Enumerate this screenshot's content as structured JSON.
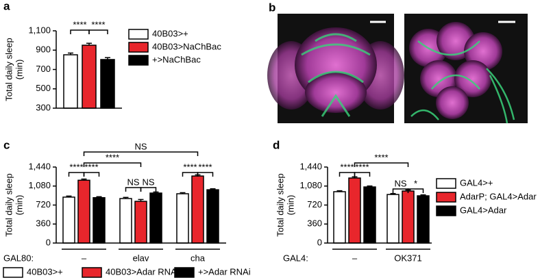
{
  "chart_data": [
    {
      "type": "bar",
      "panel": "a",
      "ylabel": [
        "Total daily sleep",
        "(min)"
      ],
      "categories": [
        null
      ],
      "series": [
        {
          "name": "40B03>+",
          "color": "#ffffff",
          "values": [
            852
          ],
          "errors": [
            18
          ]
        },
        {
          "name": "40B03>NaChBac",
          "color": "#e8262c",
          "values": [
            951
          ],
          "errors": [
            20
          ]
        },
        {
          "name": "+>NaChBac",
          "color": "#000000",
          "values": [
            803
          ],
          "errors": [
            20
          ]
        }
      ],
      "ylim": [
        300,
        1100
      ],
      "yticks": [
        300,
        500,
        700,
        900,
        {
          "value": 1100,
          "label": "1,100"
        }
      ],
      "annotations": [
        "****",
        "****"
      ]
    },
    {
      "type": "bar",
      "panel": "c",
      "ylabel": [
        "Total daily sleep",
        "(min)"
      ],
      "group_label": "GAL80:",
      "categories": [
        "–",
        "elav",
        "cha"
      ],
      "series": [
        {
          "name": "40B03>+",
          "color": "#ffffff",
          "values": [
            870,
            843,
            934
          ],
          "errors": [
            20,
            22,
            20
          ]
        },
        {
          "name": "40B03>Adar RNAi",
          "color": "#e8262c",
          "values": [
            1190,
            790,
            1270
          ],
          "errors": [
            22,
            35,
            22
          ]
        },
        {
          "name": "+>Adar RNAi",
          "color": "#000000",
          "values": [
            860,
            947,
            1010
          ],
          "errors": [
            18,
            20,
            18
          ]
        }
      ],
      "ylim": [
        0,
        1440
      ],
      "yticks": [
        0,
        360,
        720,
        {
          "value": 1080,
          "label": "1,080"
        },
        {
          "value": 1440,
          "label": "1,440"
        }
      ],
      "annotations": [
        "****",
        "****",
        "NS",
        "NS",
        "****",
        "****",
        "****",
        "NS"
      ]
    },
    {
      "type": "bar",
      "panel": "d",
      "ylabel": [
        "Total daily sleep",
        "(min)"
      ],
      "group_label": "GAL4:",
      "categories": [
        "–",
        "OK371"
      ],
      "series": [
        {
          "name": "GAL4>+",
          "color": "#ffffff",
          "values": [
            973,
            920
          ],
          "errors": [
            18,
            18
          ]
        },
        {
          "name": "AdarP; GAL4>Adar",
          "color": "#e8262c",
          "values": [
            1232,
            986
          ],
          "errors": [
            22,
            20
          ]
        },
        {
          "name": "GAL4>Adar",
          "color": "#000000",
          "values": [
            1063,
            895
          ],
          "errors": [
            18,
            18
          ]
        }
      ],
      "ylim": [
        0,
        1440
      ],
      "yticks": [
        0,
        360,
        720,
        {
          "value": 1080,
          "label": "1,080"
        },
        {
          "value": 1440,
          "label": "1,440"
        }
      ],
      "annotations": [
        "****",
        "****",
        "****",
        "NS",
        "*"
      ]
    }
  ],
  "image_panel": {
    "panel": "b"
  }
}
